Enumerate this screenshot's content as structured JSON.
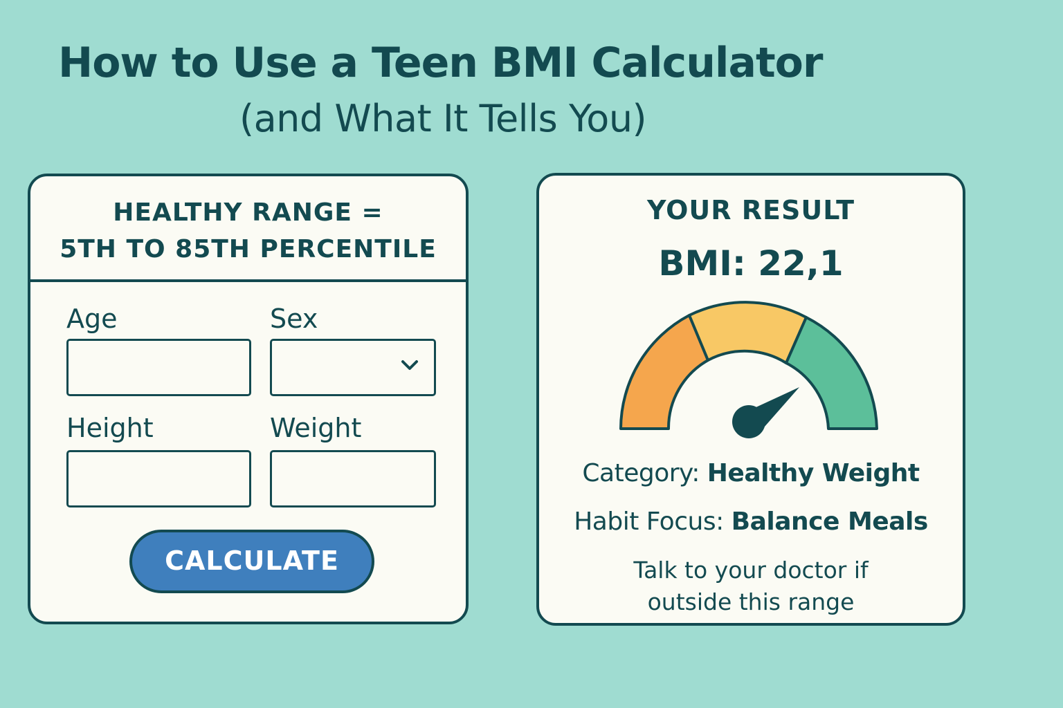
{
  "header": {
    "title": "How to Use a Teen BMI Calculator",
    "subtitle": "(and What It Tells You)"
  },
  "calculator": {
    "range_line1": "HEALTHY RANGE =",
    "range_line2": "5TH TO 85TH PERCENTILE",
    "fields": {
      "age": {
        "label": "Age",
        "value": ""
      },
      "sex": {
        "label": "Sex",
        "value": ""
      },
      "height": {
        "label": "Height",
        "value": ""
      },
      "weight": {
        "label": "Weight",
        "value": ""
      }
    },
    "calculate_label": "CALCULATE"
  },
  "result": {
    "heading": "YOUR RESULT",
    "bmi_label": "BMI:",
    "bmi_value": "22,1",
    "category_label": "Category:",
    "category_value": "Healthy Weight",
    "habit_label": "Habit Focus:",
    "habit_value": "Balance Meals",
    "note_line1": "Talk to your doctor if",
    "note_line2": "outside this range",
    "gauge": {
      "segments": [
        {
          "name": "orange",
          "color": "#f5a64d"
        },
        {
          "name": "yellow",
          "color": "#f8c865"
        },
        {
          "name": "green",
          "color": "#5cbf9a"
        }
      ],
      "needle_color": "#134a50"
    }
  },
  "colors": {
    "background": "#9fdcd1",
    "ink": "#134a50",
    "card": "#fbfbf4",
    "button": "#3f7fbd"
  }
}
